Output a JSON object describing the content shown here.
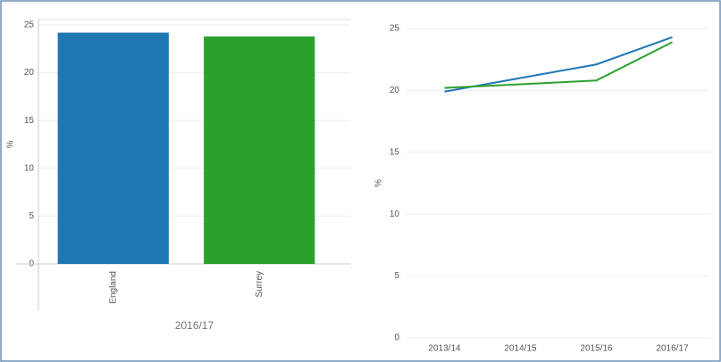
{
  "chart_data": [
    {
      "type": "bar",
      "ylabel": "%",
      "group_label": "2016/17",
      "categories": [
        "England",
        "Surrey"
      ],
      "values": [
        24.2,
        23.8
      ],
      "colors": [
        "#1f77b4",
        "#2ca02c"
      ],
      "ylim": [
        0,
        25
      ],
      "yticks": [
        0,
        5,
        10,
        15,
        20,
        25
      ],
      "grid": true
    },
    {
      "type": "line",
      "ylabel": "%",
      "categories": [
        "2013/14",
        "2014/15",
        "2015/16",
        "2016/17"
      ],
      "series": [
        {
          "color": "#1f77b4",
          "values": [
            19.9,
            21.0,
            22.1,
            24.3
          ]
        },
        {
          "color": "#2ca02c",
          "values": [
            20.2,
            20.5,
            20.8,
            23.9
          ]
        }
      ],
      "ylim": [
        0,
        25
      ],
      "yticks": [
        0,
        5,
        10,
        15,
        20,
        25
      ],
      "grid": true
    }
  ]
}
